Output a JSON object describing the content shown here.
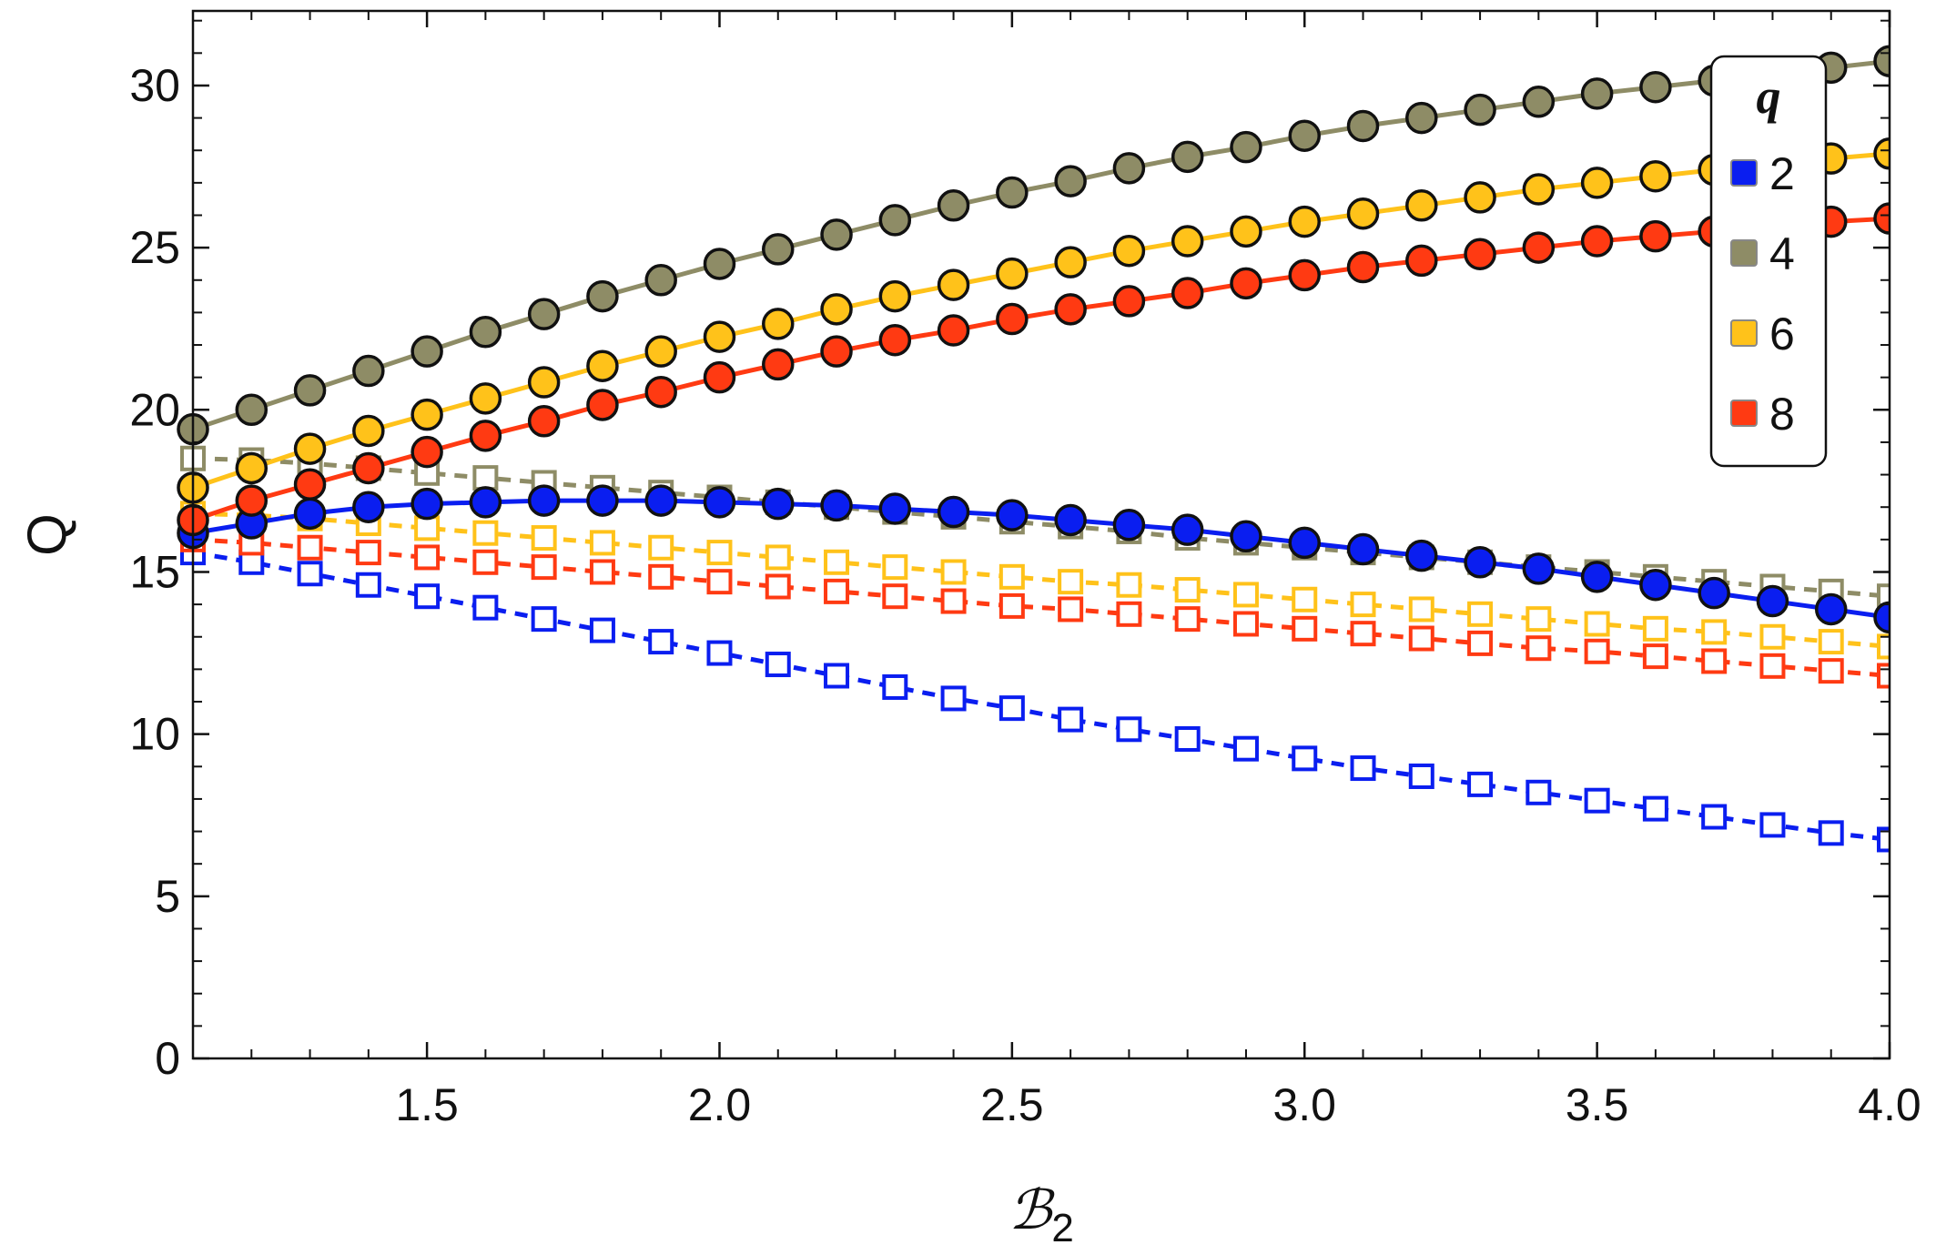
{
  "chart_data": {
    "type": "line",
    "title": "",
    "xlabel": "ℬ",
    "xlabel_subscript": "2",
    "ylabel": "Q",
    "xlim": [
      1.1,
      4.0
    ],
    "ylim": [
      0,
      32.3
    ],
    "x_ticks": [
      1.5,
      2.0,
      2.5,
      3.0,
      3.5,
      4.0
    ],
    "x_tick_labels": [
      "1.5",
      "2.0",
      "2.5",
      "3.0",
      "3.5",
      "4.0"
    ],
    "y_ticks": [
      0,
      5,
      10,
      15,
      20,
      25,
      30
    ],
    "y_tick_labels": [
      "0",
      "5",
      "10",
      "15",
      "20",
      "25",
      "30"
    ],
    "legend": {
      "title": "q",
      "position": "top-right",
      "entries": [
        {
          "label": "2",
          "color": "#0a1ef0"
        },
        {
          "label": "4",
          "color": "#8e8c66"
        },
        {
          "label": "6",
          "color": "#ffc21a"
        },
        {
          "label": "8",
          "color": "#ff3a12"
        }
      ]
    },
    "x": [
      1.1,
      1.2,
      1.3,
      1.4,
      1.5,
      1.6,
      1.7,
      1.8,
      1.9,
      2.0,
      2.1,
      2.2,
      2.3,
      2.4,
      2.5,
      2.6,
      2.7,
      2.8,
      2.9,
      3.0,
      3.1,
      3.2,
      3.3,
      3.4,
      3.5,
      3.6,
      3.7,
      3.8,
      3.9,
      4.0
    ],
    "series": [
      {
        "name": "q=2 filled",
        "q": "2",
        "style": "solid-circle",
        "color": "#0a1ef0",
        "values": [
          16.2,
          16.5,
          16.8,
          17.0,
          17.1,
          17.15,
          17.2,
          17.2,
          17.2,
          17.15,
          17.1,
          17.05,
          16.95,
          16.85,
          16.75,
          16.6,
          16.45,
          16.3,
          16.1,
          15.9,
          15.7,
          15.5,
          15.3,
          15.1,
          14.85,
          14.6,
          14.35,
          14.1,
          13.85,
          13.6
        ]
      },
      {
        "name": "q=2 open",
        "q": "2",
        "style": "dashed-square",
        "color": "#0a1ef0",
        "values": [
          15.6,
          15.3,
          14.95,
          14.6,
          14.25,
          13.9,
          13.55,
          13.2,
          12.85,
          12.5,
          12.15,
          11.8,
          11.45,
          11.1,
          10.8,
          10.45,
          10.15,
          9.85,
          9.55,
          9.25,
          8.95,
          8.7,
          8.45,
          8.2,
          7.95,
          7.7,
          7.45,
          7.2,
          6.95,
          6.75
        ]
      },
      {
        "name": "q=4 filled",
        "q": "4",
        "style": "solid-circle",
        "color": "#8e8c66",
        "values": [
          19.4,
          20.0,
          20.6,
          21.2,
          21.8,
          22.4,
          22.95,
          23.5,
          24.0,
          24.5,
          24.95,
          25.4,
          25.85,
          26.3,
          26.7,
          27.05,
          27.45,
          27.8,
          28.1,
          28.45,
          28.75,
          29.0,
          29.25,
          29.5,
          29.75,
          29.95,
          30.15,
          30.35,
          30.55,
          30.75
        ]
      },
      {
        "name": "q=4 open",
        "q": "4",
        "style": "dashed-square",
        "color": "#8e8c66",
        "values": [
          18.5,
          18.45,
          18.35,
          18.2,
          18.05,
          17.9,
          17.75,
          17.6,
          17.45,
          17.3,
          17.15,
          17.0,
          16.85,
          16.7,
          16.55,
          16.4,
          16.25,
          16.05,
          15.9,
          15.75,
          15.6,
          15.45,
          15.3,
          15.15,
          15.0,
          14.85,
          14.7,
          14.55,
          14.4,
          14.25
        ]
      },
      {
        "name": "q=6 filled",
        "q": "6",
        "style": "solid-circle",
        "color": "#ffc21a",
        "values": [
          17.6,
          18.2,
          18.8,
          19.35,
          19.85,
          20.35,
          20.85,
          21.35,
          21.8,
          22.25,
          22.65,
          23.1,
          23.5,
          23.85,
          24.2,
          24.55,
          24.9,
          25.2,
          25.5,
          25.8,
          26.05,
          26.3,
          26.55,
          26.8,
          27.0,
          27.2,
          27.4,
          27.6,
          27.75,
          27.9
        ]
      },
      {
        "name": "q=6 open",
        "q": "6",
        "style": "dashed-square",
        "color": "#ffc21a",
        "values": [
          16.8,
          16.75,
          16.65,
          16.5,
          16.35,
          16.2,
          16.05,
          15.9,
          15.75,
          15.6,
          15.45,
          15.3,
          15.15,
          15.0,
          14.85,
          14.7,
          14.6,
          14.45,
          14.3,
          14.15,
          14.0,
          13.85,
          13.7,
          13.55,
          13.4,
          13.25,
          13.15,
          13.0,
          12.85,
          12.7
        ]
      },
      {
        "name": "q=8 filled",
        "q": "8",
        "style": "solid-circle",
        "color": "#ff3a12",
        "values": [
          16.6,
          17.2,
          17.7,
          18.2,
          18.7,
          19.2,
          19.65,
          20.15,
          20.55,
          21.0,
          21.4,
          21.8,
          22.15,
          22.45,
          22.8,
          23.1,
          23.35,
          23.6,
          23.9,
          24.15,
          24.4,
          24.6,
          24.8,
          25.0,
          25.2,
          25.35,
          25.5,
          25.65,
          25.8,
          25.9
        ]
      },
      {
        "name": "q=8 open",
        "q": "8",
        "style": "dashed-square",
        "color": "#ff3a12",
        "values": [
          16.0,
          15.9,
          15.75,
          15.6,
          15.45,
          15.3,
          15.15,
          15.0,
          14.85,
          14.7,
          14.55,
          14.4,
          14.25,
          14.1,
          13.95,
          13.85,
          13.7,
          13.55,
          13.4,
          13.25,
          13.1,
          12.95,
          12.8,
          12.65,
          12.55,
          12.4,
          12.25,
          12.1,
          11.95,
          11.8
        ]
      }
    ]
  }
}
